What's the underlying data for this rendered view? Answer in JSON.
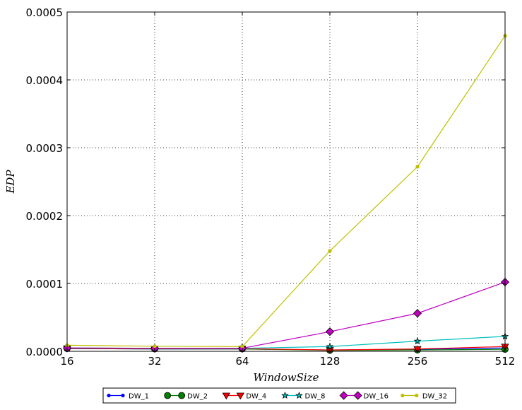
{
  "chart_data": {
    "type": "line",
    "title": "",
    "xlabel": "WindowSize",
    "ylabel": "EDP",
    "x": [
      16,
      32,
      64,
      128,
      256,
      512
    ],
    "x_tick_labels": [
      "16",
      "32",
      "64",
      "128",
      "256",
      "512"
    ],
    "x_scale": "log2",
    "ylim": [
      0,
      0.0005
    ],
    "y_tick_labels": [
      "0.0000",
      "0.0001",
      "0.0002",
      "0.0003",
      "0.0004",
      "0.0005"
    ],
    "grid": true,
    "legend_placement": "bottom-center",
    "series": [
      {
        "name": "DW_1",
        "color": "#0000ff",
        "marker": "dot",
        "values": [
          4e-06,
          3.5e-06,
          3.5e-06,
          2e-06,
          3e-06,
          5e-06
        ]
      },
      {
        "name": "DW_2",
        "color": "#008000",
        "marker": "circle",
        "values": [
          4e-06,
          3.5e-06,
          3.5e-06,
          1.5e-06,
          2e-06,
          3e-06
        ]
      },
      {
        "name": "DW_4",
        "color": "#ff0000",
        "marker": "triangle-down",
        "values": [
          4.5e-06,
          4e-06,
          4e-06,
          2e-06,
          3.5e-06,
          7e-06
        ]
      },
      {
        "name": "DW_8",
        "color": "#00bfbf",
        "marker": "star",
        "values": [
          5e-06,
          4.5e-06,
          4.5e-06,
          7e-06,
          1.5e-05,
          2.2e-05
        ]
      },
      {
        "name": "DW_16",
        "color": "#bf00bf",
        "marker": "diamond",
        "values": [
          5e-06,
          4.5e-06,
          4.5e-06,
          2.9e-05,
          5.6e-05,
          0.000102
        ]
      },
      {
        "name": "DW_32",
        "color": "#bfbf00",
        "marker": "dot",
        "values": [
          9e-06,
          7.5e-06,
          7e-06,
          0.000148,
          0.000272,
          0.000465
        ]
      }
    ]
  }
}
